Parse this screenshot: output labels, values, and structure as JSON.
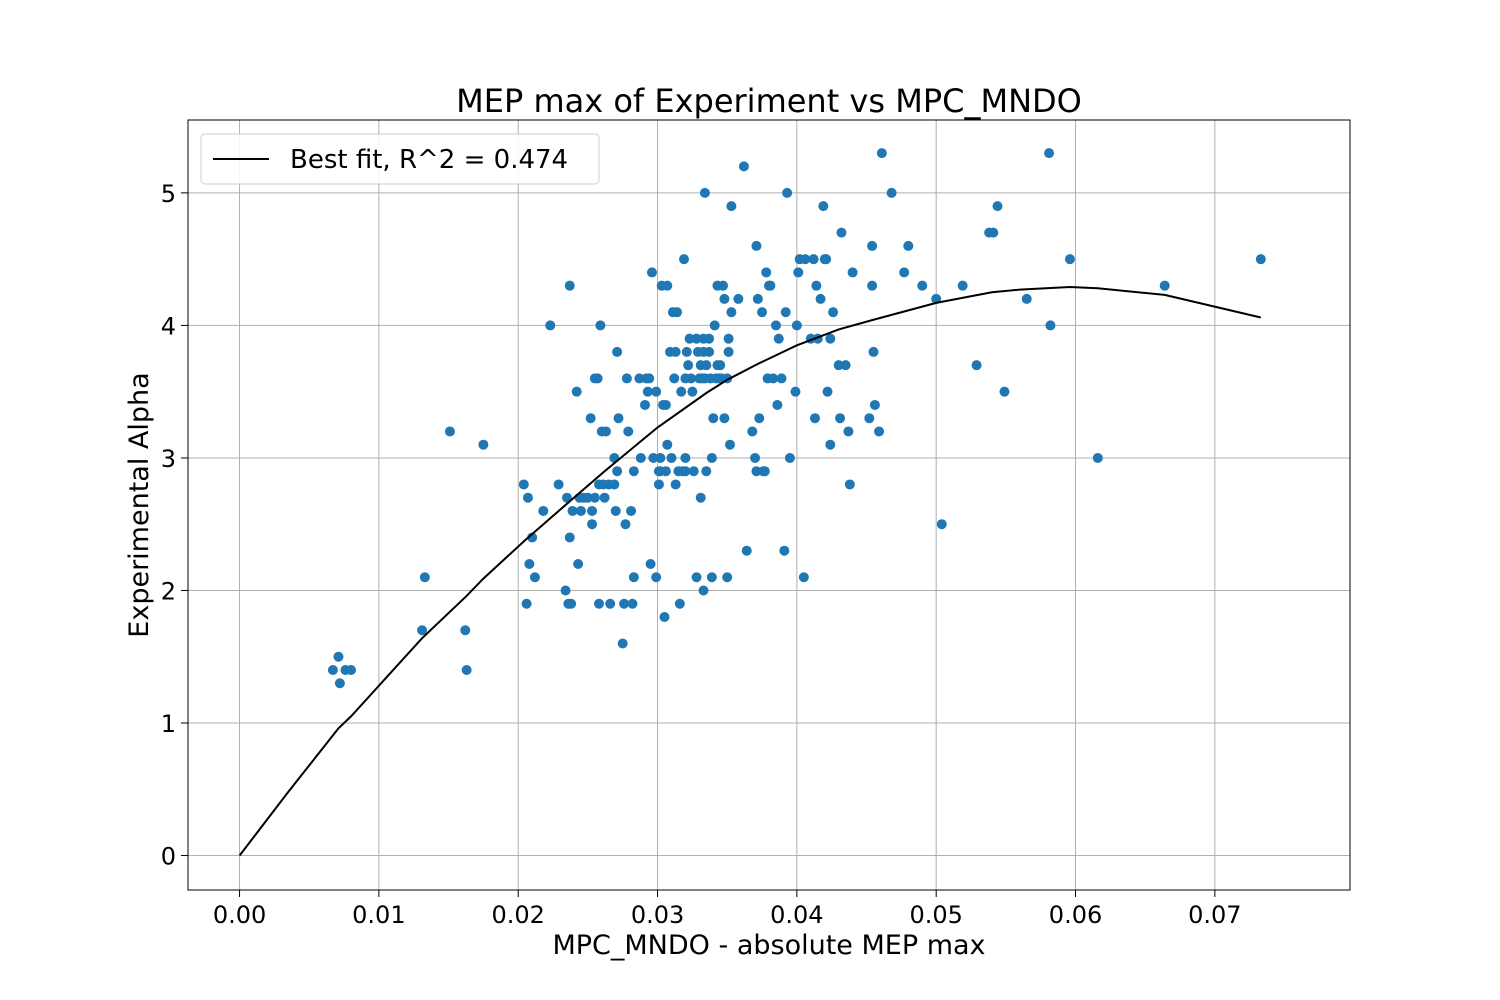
{
  "chart_data": {
    "type": "scatter",
    "title": "MEP max of Experiment vs MPC_MNDO",
    "xlabel": "MPC_MNDO - absolute MEP max",
    "ylabel": "Experimental Alpha",
    "xlim": [
      -0.0037,
      0.0797
    ],
    "ylim": [
      -0.26,
      5.55
    ],
    "grid": true,
    "legend": {
      "placement": "top-left",
      "label": "Best fit, R^2 = 0.474"
    },
    "x_ticks": [
      {
        "value": 0.0,
        "label": "0.00"
      },
      {
        "value": 0.01,
        "label": "0.01"
      },
      {
        "value": 0.02,
        "label": "0.02"
      },
      {
        "value": 0.03,
        "label": "0.03"
      },
      {
        "value": 0.04,
        "label": "0.04"
      },
      {
        "value": 0.05,
        "label": "0.05"
      },
      {
        "value": 0.06,
        "label": "0.06"
      },
      {
        "value": 0.07,
        "label": "0.07"
      }
    ],
    "y_ticks": [
      {
        "value": 0,
        "label": "0"
      },
      {
        "value": 1,
        "label": "1"
      },
      {
        "value": 2,
        "label": "2"
      },
      {
        "value": 3,
        "label": "3"
      },
      {
        "value": 4,
        "label": "4"
      },
      {
        "value": 5,
        "label": "5"
      }
    ],
    "series": [
      {
        "kind": "scatter",
        "color": "#1f77b4",
        "points": [
          [
            0.0067,
            1.4
          ],
          [
            0.0071,
            1.5
          ],
          [
            0.0072,
            1.3
          ],
          [
            0.0076,
            1.4
          ],
          [
            0.008,
            1.4
          ],
          [
            0.0131,
            1.7
          ],
          [
            0.0133,
            2.1
          ],
          [
            0.0151,
            3.2
          ],
          [
            0.0162,
            1.7
          ],
          [
            0.0163,
            1.4
          ],
          [
            0.0175,
            3.1
          ],
          [
            0.0204,
            2.8
          ],
          [
            0.0206,
            1.9
          ],
          [
            0.0207,
            2.7
          ],
          [
            0.0208,
            2.2
          ],
          [
            0.021,
            2.4
          ],
          [
            0.0212,
            2.1
          ],
          [
            0.0218,
            2.6
          ],
          [
            0.0223,
            4.0
          ],
          [
            0.0229,
            2.8
          ],
          [
            0.0234,
            2.0
          ],
          [
            0.0235,
            2.7
          ],
          [
            0.0236,
            1.9
          ],
          [
            0.0237,
            2.4
          ],
          [
            0.0237,
            4.3
          ],
          [
            0.0238,
            1.9
          ],
          [
            0.0239,
            2.6
          ],
          [
            0.0242,
            3.5
          ],
          [
            0.0243,
            2.2
          ],
          [
            0.0244,
            2.7
          ],
          [
            0.0245,
            2.6
          ],
          [
            0.0247,
            2.7
          ],
          [
            0.025,
            2.7
          ],
          [
            0.0252,
            3.3
          ],
          [
            0.0253,
            2.6
          ],
          [
            0.0253,
            2.5
          ],
          [
            0.0255,
            3.6
          ],
          [
            0.0255,
            2.7
          ],
          [
            0.0257,
            3.6
          ],
          [
            0.0258,
            2.8
          ],
          [
            0.0258,
            1.9
          ],
          [
            0.0259,
            4.0
          ],
          [
            0.026,
            3.2
          ],
          [
            0.0261,
            2.8
          ],
          [
            0.0262,
            2.7
          ],
          [
            0.0263,
            3.2
          ],
          [
            0.0265,
            2.8
          ],
          [
            0.0266,
            1.9
          ],
          [
            0.0269,
            3.0
          ],
          [
            0.0269,
            2.8
          ],
          [
            0.027,
            2.6
          ],
          [
            0.0271,
            3.8
          ],
          [
            0.0272,
            3.3
          ],
          [
            0.0271,
            2.9
          ],
          [
            0.0275,
            1.6
          ],
          [
            0.0276,
            1.9
          ],
          [
            0.0277,
            2.5
          ],
          [
            0.0278,
            3.6
          ],
          [
            0.0279,
            3.2
          ],
          [
            0.0281,
            2.6
          ],
          [
            0.0282,
            1.9
          ],
          [
            0.0283,
            2.9
          ],
          [
            0.0283,
            2.1
          ],
          [
            0.0287,
            3.6
          ],
          [
            0.0288,
            3.0
          ],
          [
            0.0291,
            3.4
          ],
          [
            0.0292,
            3.6
          ],
          [
            0.0293,
            3.5
          ],
          [
            0.0294,
            3.6
          ],
          [
            0.0295,
            2.2
          ],
          [
            0.0296,
            4.4
          ],
          [
            0.0297,
            3.0
          ],
          [
            0.0299,
            2.1
          ],
          [
            0.0299,
            3.5
          ],
          [
            0.0301,
            2.9
          ],
          [
            0.0301,
            2.8
          ],
          [
            0.0302,
            3.0
          ],
          [
            0.0302,
            2.9
          ],
          [
            0.0303,
            4.3
          ],
          [
            0.0304,
            3.4
          ],
          [
            0.0305,
            1.8
          ],
          [
            0.0306,
            2.9
          ],
          [
            0.0306,
            3.4
          ],
          [
            0.0307,
            3.1
          ],
          [
            0.0307,
            4.3
          ],
          [
            0.0309,
            3.8
          ],
          [
            0.031,
            3.0
          ],
          [
            0.0311,
            4.1
          ],
          [
            0.0312,
            3.6
          ],
          [
            0.0313,
            3.8
          ],
          [
            0.0313,
            2.8
          ],
          [
            0.0314,
            4.1
          ],
          [
            0.0315,
            2.9
          ],
          [
            0.0316,
            1.9
          ],
          [
            0.0317,
            3.5
          ],
          [
            0.0318,
            2.9
          ],
          [
            0.0319,
            4.5
          ],
          [
            0.032,
            3.6
          ],
          [
            0.032,
            3.0
          ],
          [
            0.032,
            2.9
          ],
          [
            0.0321,
            3.8
          ],
          [
            0.0322,
            3.7
          ],
          [
            0.0323,
            3.9
          ],
          [
            0.0324,
            3.6
          ],
          [
            0.0325,
            3.5
          ],
          [
            0.0326,
            2.9
          ],
          [
            0.0328,
            2.1
          ],
          [
            0.0328,
            3.9
          ],
          [
            0.0329,
            3.8
          ],
          [
            0.033,
            3.6
          ],
          [
            0.0331,
            3.7
          ],
          [
            0.0331,
            2.7
          ],
          [
            0.0332,
            3.6
          ],
          [
            0.0333,
            3.9
          ],
          [
            0.0333,
            2.0
          ],
          [
            0.0333,
            3.8
          ],
          [
            0.0334,
            5.0
          ],
          [
            0.0334,
            3.6
          ],
          [
            0.0335,
            2.9
          ],
          [
            0.0335,
            3.7
          ],
          [
            0.0337,
            3.9
          ],
          [
            0.0337,
            3.8
          ],
          [
            0.0338,
            3.6
          ],
          [
            0.0339,
            2.1
          ],
          [
            0.0339,
            3.0
          ],
          [
            0.034,
            3.3
          ],
          [
            0.0341,
            4.0
          ],
          [
            0.0342,
            3.6
          ],
          [
            0.0343,
            4.3
          ],
          [
            0.0343,
            3.7
          ],
          [
            0.0344,
            3.6
          ],
          [
            0.0345,
            3.7
          ],
          [
            0.0346,
            3.6
          ],
          [
            0.0347,
            4.3
          ],
          [
            0.0348,
            3.3
          ],
          [
            0.0348,
            4.2
          ],
          [
            0.035,
            2.1
          ],
          [
            0.035,
            3.6
          ],
          [
            0.0351,
            3.8
          ],
          [
            0.0351,
            3.9
          ],
          [
            0.0352,
            3.1
          ],
          [
            0.0353,
            4.9
          ],
          [
            0.0353,
            4.1
          ],
          [
            0.0358,
            4.2
          ],
          [
            0.0362,
            5.2
          ],
          [
            0.0364,
            2.3
          ],
          [
            0.0368,
            3.2
          ],
          [
            0.037,
            3.0
          ],
          [
            0.0371,
            4.6
          ],
          [
            0.0371,
            2.9
          ],
          [
            0.0372,
            4.2
          ],
          [
            0.0373,
            3.3
          ],
          [
            0.0375,
            4.1
          ],
          [
            0.0376,
            2.9
          ],
          [
            0.0377,
            2.9
          ],
          [
            0.0378,
            4.4
          ],
          [
            0.0379,
            3.6
          ],
          [
            0.038,
            4.3
          ],
          [
            0.0381,
            4.3
          ],
          [
            0.0383,
            3.6
          ],
          [
            0.0385,
            4.0
          ],
          [
            0.0386,
            3.4
          ],
          [
            0.0387,
            3.9
          ],
          [
            0.0389,
            3.6
          ],
          [
            0.0391,
            2.3
          ],
          [
            0.0392,
            4.1
          ],
          [
            0.0393,
            5.0
          ],
          [
            0.0395,
            3.0
          ],
          [
            0.0399,
            3.5
          ],
          [
            0.04,
            4.0
          ],
          [
            0.0401,
            4.4
          ],
          [
            0.0402,
            4.5
          ],
          [
            0.0405,
            2.1
          ],
          [
            0.0406,
            4.5
          ],
          [
            0.041,
            3.9
          ],
          [
            0.0412,
            4.5
          ],
          [
            0.0413,
            3.3
          ],
          [
            0.0414,
            4.3
          ],
          [
            0.0415,
            3.9
          ],
          [
            0.0417,
            4.2
          ],
          [
            0.0419,
            4.9
          ],
          [
            0.042,
            4.5
          ],
          [
            0.0421,
            4.5
          ],
          [
            0.0422,
            3.5
          ],
          [
            0.0424,
            3.9
          ],
          [
            0.0424,
            3.1
          ],
          [
            0.0426,
            4.1
          ],
          [
            0.043,
            3.7
          ],
          [
            0.0431,
            3.3
          ],
          [
            0.0432,
            4.7
          ],
          [
            0.0435,
            3.7
          ],
          [
            0.0437,
            3.2
          ],
          [
            0.0438,
            2.8
          ],
          [
            0.044,
            4.4
          ],
          [
            0.0452,
            3.3
          ],
          [
            0.0454,
            4.3
          ],
          [
            0.0454,
            4.6
          ],
          [
            0.0455,
            3.8
          ],
          [
            0.0456,
            3.4
          ],
          [
            0.0459,
            3.2
          ],
          [
            0.0461,
            5.3
          ],
          [
            0.0468,
            5.0
          ],
          [
            0.0477,
            4.4
          ],
          [
            0.048,
            4.6
          ],
          [
            0.049,
            4.3
          ],
          [
            0.05,
            4.2
          ],
          [
            0.0504,
            2.5
          ],
          [
            0.0519,
            4.3
          ],
          [
            0.0529,
            3.7
          ],
          [
            0.0538,
            4.7
          ],
          [
            0.0541,
            4.7
          ],
          [
            0.0544,
            4.9
          ],
          [
            0.0549,
            3.5
          ],
          [
            0.0565,
            4.2
          ],
          [
            0.0581,
            5.3
          ],
          [
            0.0582,
            4.0
          ],
          [
            0.0596,
            4.5
          ],
          [
            0.0616,
            3.0
          ],
          [
            0.0664,
            4.3
          ],
          [
            0.0733,
            4.5
          ]
        ]
      },
      {
        "kind": "line",
        "name": "Best fit, R^2 = 0.474",
        "color": "#000000",
        "points": [
          [
            0.0,
            0.0
          ],
          [
            0.0035,
            0.48
          ],
          [
            0.0071,
            0.96
          ],
          [
            0.008,
            1.05
          ],
          [
            0.0131,
            1.64
          ],
          [
            0.0163,
            1.96
          ],
          [
            0.0175,
            2.09
          ],
          [
            0.0205,
            2.38
          ],
          [
            0.024,
            2.7
          ],
          [
            0.0262,
            2.9
          ],
          [
            0.03,
            3.23
          ],
          [
            0.0335,
            3.49
          ],
          [
            0.035,
            3.59
          ],
          [
            0.0372,
            3.71
          ],
          [
            0.04,
            3.85
          ],
          [
            0.043,
            3.97
          ],
          [
            0.0454,
            4.04
          ],
          [
            0.05,
            4.17
          ],
          [
            0.054,
            4.25
          ],
          [
            0.056,
            4.27
          ],
          [
            0.0596,
            4.29
          ],
          [
            0.0616,
            4.28
          ],
          [
            0.0664,
            4.23
          ],
          [
            0.0733,
            4.06
          ]
        ]
      }
    ]
  }
}
